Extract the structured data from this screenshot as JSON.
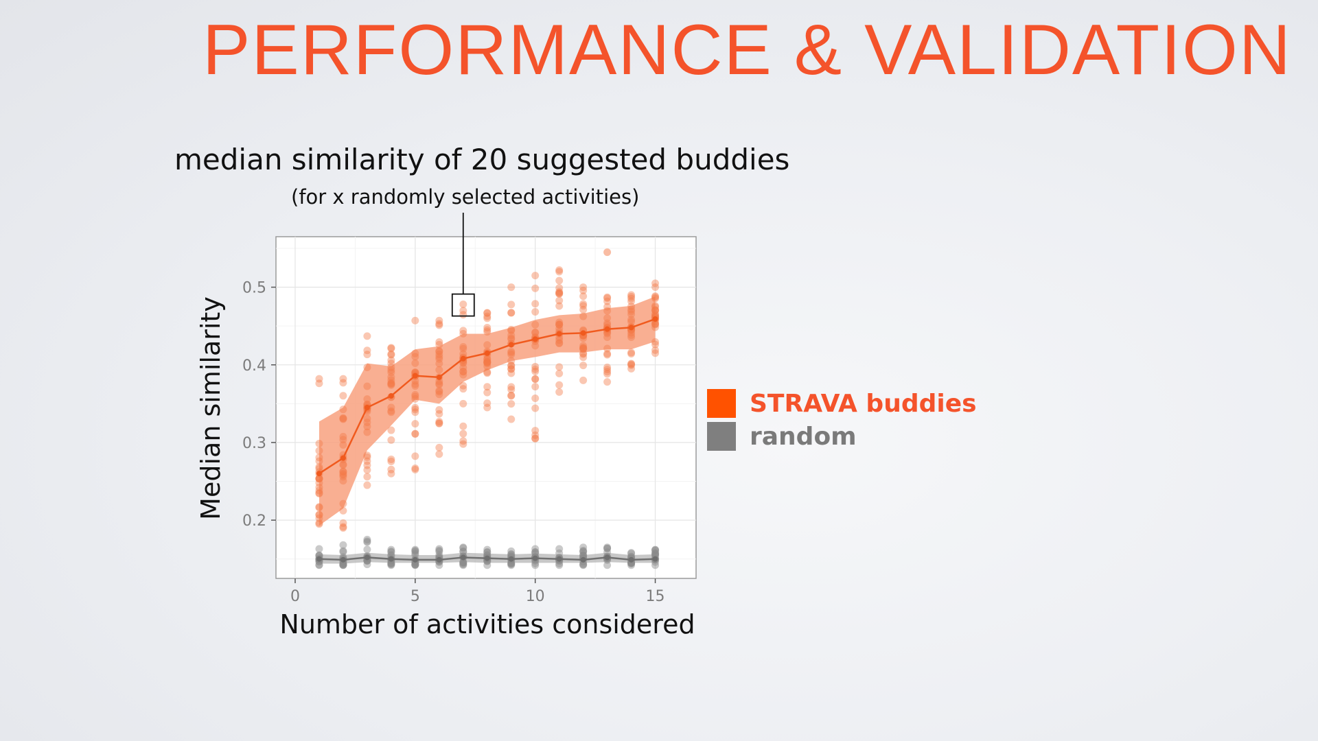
{
  "slide": {
    "title": "PERFORMANCE  & VALIDATION"
  },
  "annotation": {
    "title": "median similarity of 20 suggested buddies",
    "subtitle": "(for x randomly selected activities)"
  },
  "legend": {
    "items": [
      {
        "label": "STRAVA buddies",
        "color": "#ff5200"
      },
      {
        "label": "random",
        "color": "#7f7f7f"
      }
    ]
  },
  "chart_data": {
    "type": "line",
    "xlabel": "Number of activities considered",
    "ylabel": "Median similarity",
    "xlim": [
      -0.8,
      16.7
    ],
    "ylim": [
      0.125,
      0.565
    ],
    "xticks": [
      0,
      5,
      10,
      15
    ],
    "yticks": [
      0.2,
      0.3,
      0.4,
      0.5
    ],
    "grid": true,
    "x": [
      1,
      2,
      3,
      4,
      5,
      6,
      7,
      8,
      9,
      10,
      11,
      12,
      13,
      14,
      15
    ],
    "series": [
      {
        "name": "STRAVA buddies",
        "color": "#f05a1e",
        "median": [
          0.26,
          0.28,
          0.345,
          0.36,
          0.386,
          0.384,
          0.408,
          0.415,
          0.426,
          0.433,
          0.44,
          0.441,
          0.446,
          0.448,
          0.459
        ],
        "band_low": [
          0.193,
          0.215,
          0.29,
          0.322,
          0.355,
          0.35,
          0.378,
          0.393,
          0.405,
          0.41,
          0.416,
          0.416,
          0.42,
          0.42,
          0.43
        ],
        "band_high": [
          0.327,
          0.345,
          0.402,
          0.398,
          0.42,
          0.424,
          0.44,
          0.44,
          0.448,
          0.458,
          0.464,
          0.466,
          0.473,
          0.476,
          0.488
        ],
        "points_low": [
          0.195,
          0.19,
          0.245,
          0.26,
          0.265,
          0.285,
          0.298,
          0.345,
          0.33,
          0.305,
          0.365,
          0.38,
          0.378,
          0.395,
          0.415
        ],
        "points_high": [
          0.382,
          0.382,
          0.437,
          0.422,
          0.457,
          0.457,
          0.478,
          0.467,
          0.5,
          0.515,
          0.522,
          0.5,
          0.487,
          0.49,
          0.505
        ],
        "outliers": [
          [
            13,
            0.545
          ]
        ]
      },
      {
        "name": "random",
        "color": "#808080",
        "median": [
          0.15,
          0.149,
          0.152,
          0.15,
          0.149,
          0.149,
          0.152,
          0.151,
          0.15,
          0.151,
          0.15,
          0.149,
          0.152,
          0.149,
          0.15
        ],
        "band_low": [
          0.144,
          0.144,
          0.146,
          0.145,
          0.145,
          0.145,
          0.146,
          0.145,
          0.145,
          0.145,
          0.145,
          0.145,
          0.146,
          0.145,
          0.145
        ],
        "band_high": [
          0.156,
          0.155,
          0.158,
          0.156,
          0.155,
          0.155,
          0.158,
          0.157,
          0.156,
          0.157,
          0.156,
          0.155,
          0.158,
          0.155,
          0.156
        ],
        "points_low": [
          0.142,
          0.142,
          0.143,
          0.142,
          0.142,
          0.142,
          0.142,
          0.142,
          0.142,
          0.142,
          0.142,
          0.142,
          0.142,
          0.142,
          0.142
        ],
        "points_high": [
          0.163,
          0.168,
          0.175,
          0.162,
          0.162,
          0.163,
          0.165,
          0.162,
          0.16,
          0.163,
          0.163,
          0.165,
          0.165,
          0.158,
          0.162
        ],
        "outliers": []
      }
    ],
    "highlight": {
      "x": 7,
      "y": 0.477
    }
  }
}
